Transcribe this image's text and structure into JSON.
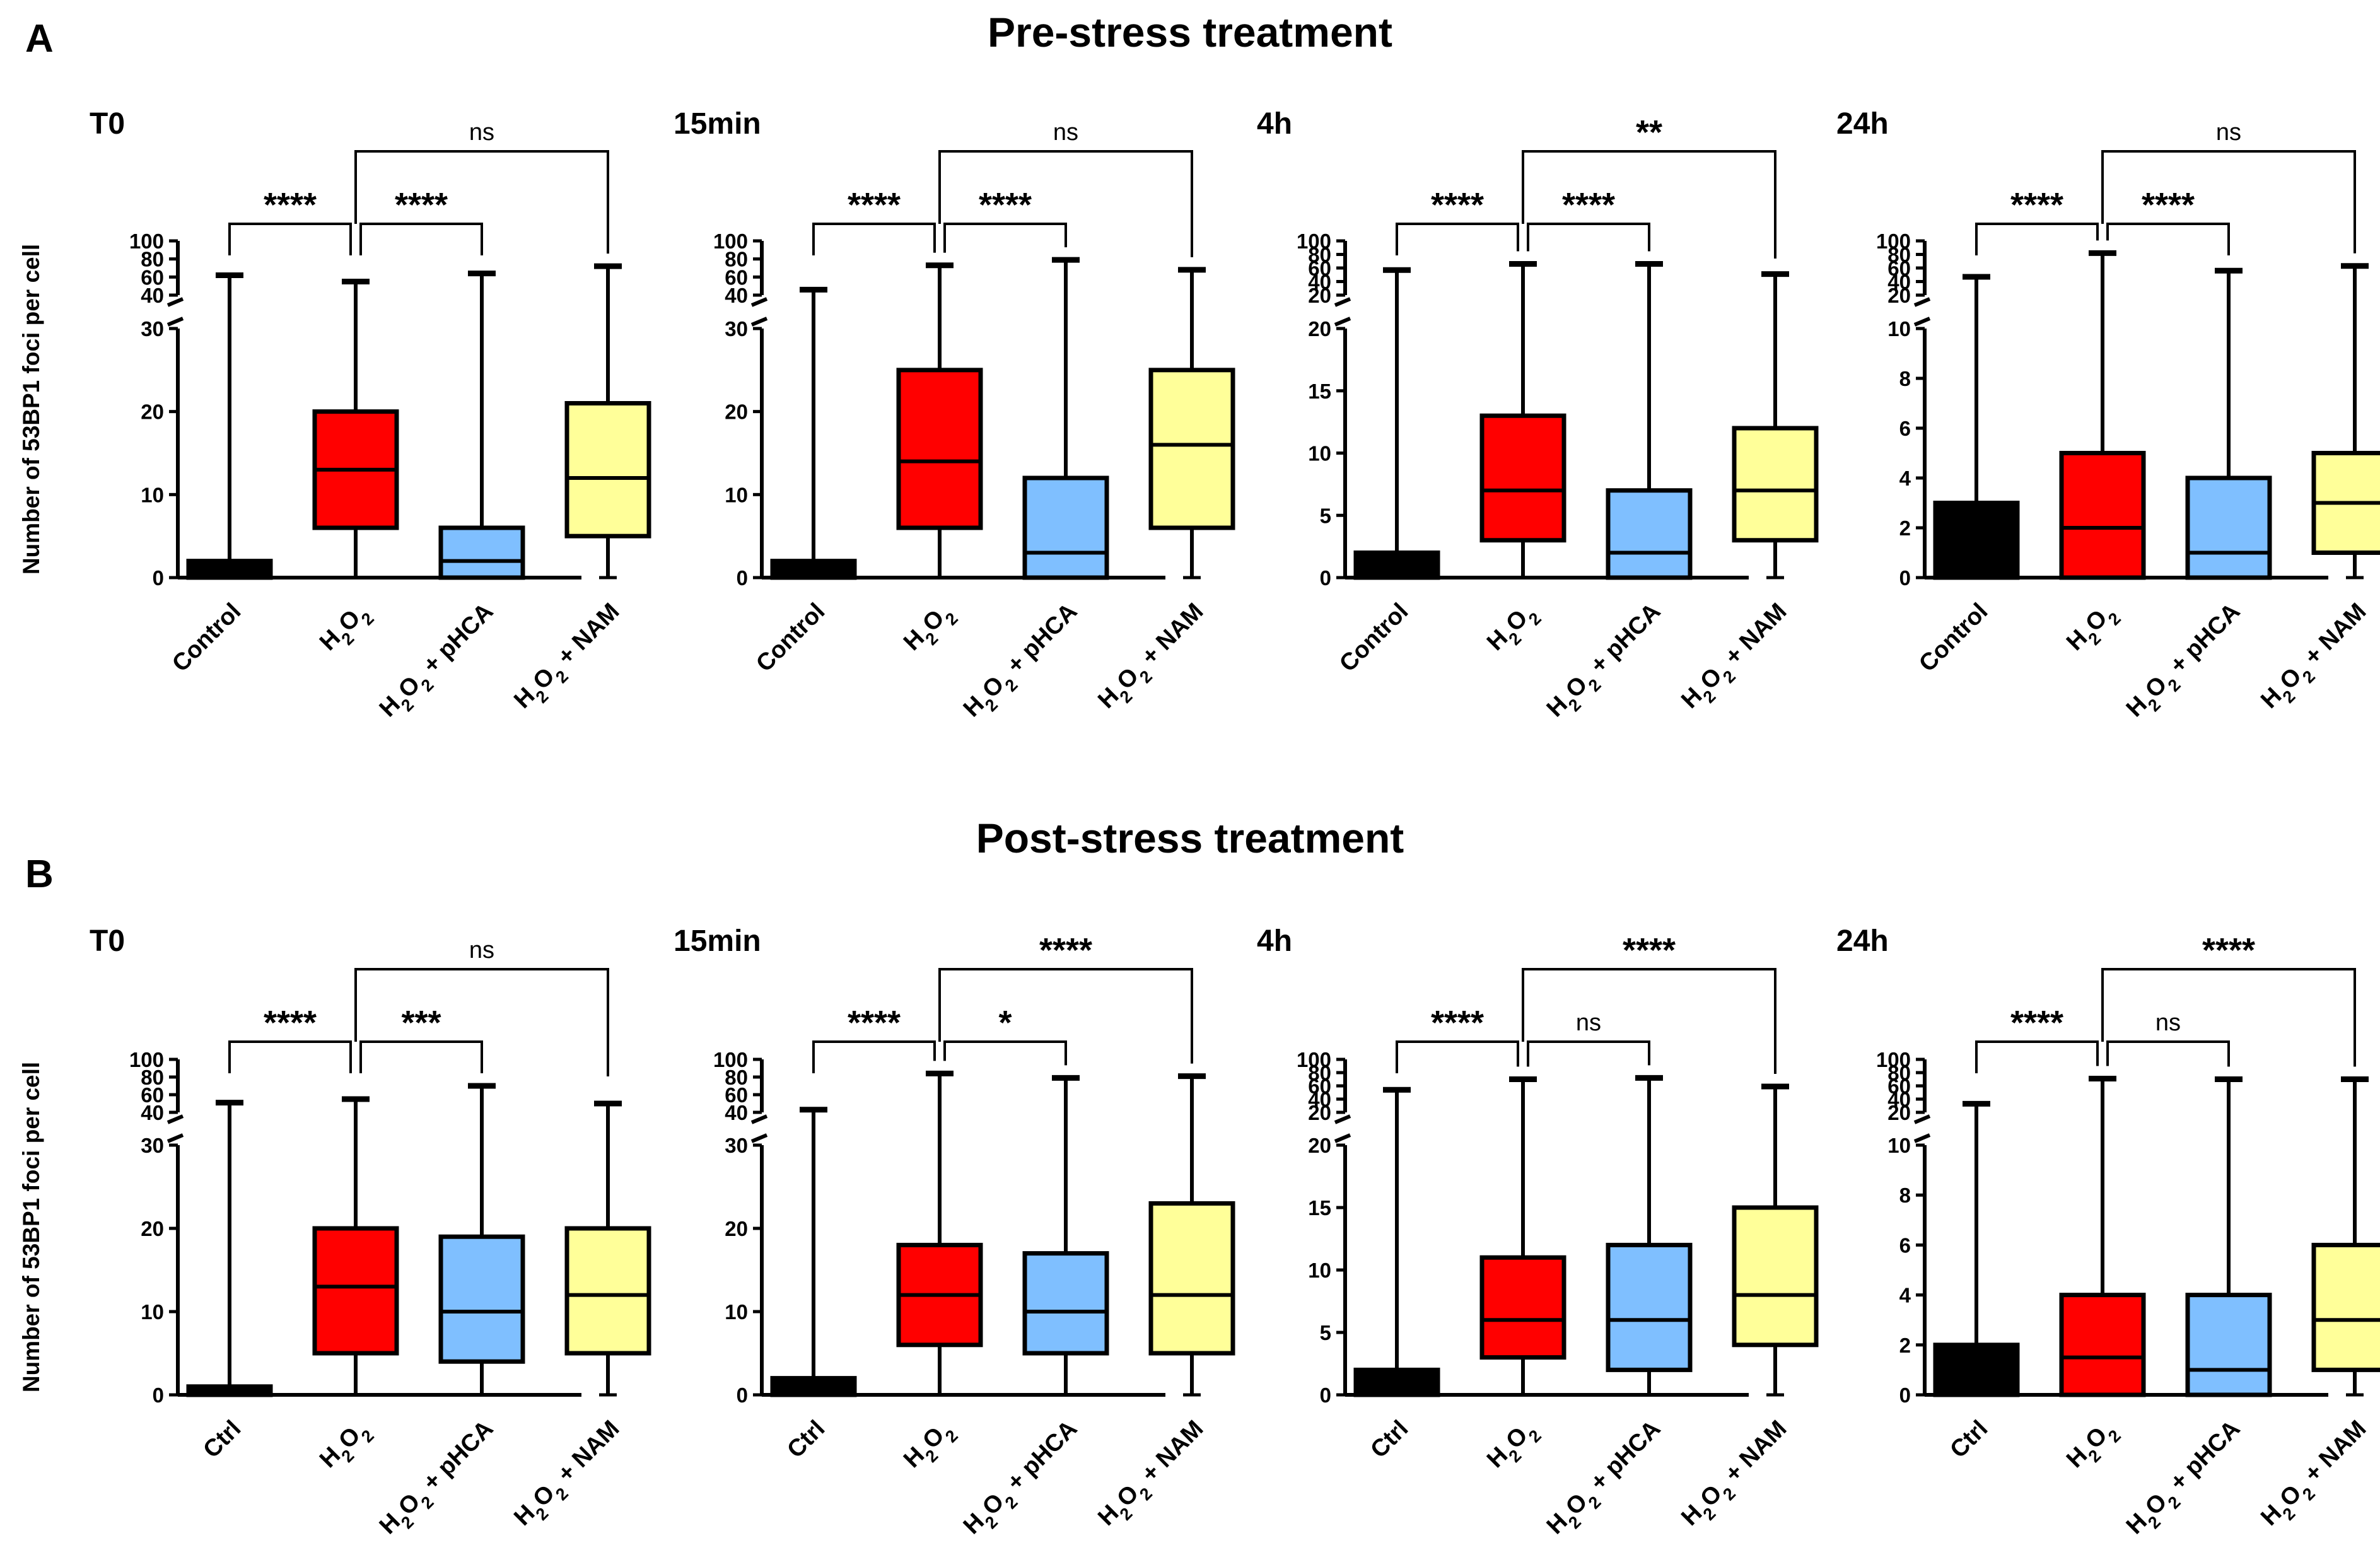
{
  "figure": {
    "title_a": "Pre-stress treatment",
    "title_b": "Post-stress treatment",
    "letter_a": "A",
    "letter_b": "B"
  },
  "colors": {
    "Control": "#000000",
    "H2O2": "#ff0000",
    "pHCA": "#7fbfff",
    "NAM": "#ffff99"
  },
  "chart_data": [
    {
      "type": "box",
      "row": "A",
      "title": "T0",
      "ylabel": "Number of 53BP1 foci per cell",
      "y_segments": {
        "lower": [
          0,
          30
        ],
        "upper": [
          40,
          100
        ]
      },
      "lower_ticks": [
        "0",
        "10",
        "20",
        "30"
      ],
      "upper_ticks": [
        "40",
        "60",
        "80",
        "100"
      ],
      "categories": [
        "Control",
        "H2O2",
        "H2O2 + pHCA",
        "H2O2 + NAM"
      ],
      "color_keys": [
        "Control",
        "H2O2",
        "pHCA",
        "NAM"
      ],
      "boxes": [
        {
          "min": 0,
          "q1": 0,
          "median": 0,
          "q3": 2,
          "max": 62
        },
        {
          "min": 0,
          "q1": 6,
          "median": 13,
          "q3": 20,
          "max": 55
        },
        {
          "min": 0,
          "q1": 0,
          "median": 2,
          "q3": 6,
          "max": 64
        },
        {
          "min": 0,
          "q1": 5,
          "median": 12,
          "q3": 21,
          "max": 72
        }
      ],
      "comparisons": [
        {
          "from": 0,
          "to": 1,
          "label": "****"
        },
        {
          "from": 1,
          "to": 2,
          "label": "****"
        },
        {
          "from": 1,
          "to": 3,
          "label": "ns"
        }
      ]
    },
    {
      "type": "box",
      "row": "A",
      "title": "15min",
      "ylabel": "",
      "y_segments": {
        "lower": [
          0,
          30
        ],
        "upper": [
          40,
          100
        ]
      },
      "lower_ticks": [
        "0",
        "10",
        "20",
        "30"
      ],
      "upper_ticks": [
        "40",
        "60",
        "80",
        "100"
      ],
      "categories": [
        "Control",
        "H2O2",
        "H2O2 + pHCA",
        "H2O2 + NAM"
      ],
      "color_keys": [
        "Control",
        "H2O2",
        "pHCA",
        "NAM"
      ],
      "boxes": [
        {
          "min": 0,
          "q1": 0,
          "median": 0,
          "q3": 2,
          "max": 46
        },
        {
          "min": 0,
          "q1": 6,
          "median": 14,
          "q3": 25,
          "max": 73
        },
        {
          "min": 0,
          "q1": 0,
          "median": 3,
          "q3": 12,
          "max": 79
        },
        {
          "min": 0,
          "q1": 6,
          "median": 16,
          "q3": 25,
          "max": 68
        }
      ],
      "comparisons": [
        {
          "from": 0,
          "to": 1,
          "label": "****"
        },
        {
          "from": 1,
          "to": 2,
          "label": "****"
        },
        {
          "from": 1,
          "to": 3,
          "label": "ns"
        }
      ]
    },
    {
      "type": "box",
      "row": "A",
      "title": "4h",
      "ylabel": "",
      "y_segments": {
        "lower": [
          0,
          20
        ],
        "upper": [
          20,
          100
        ]
      },
      "lower_ticks": [
        "0",
        "5",
        "10",
        "15",
        "20"
      ],
      "upper_ticks": [
        "20",
        "40",
        "60",
        "80",
        "100"
      ],
      "categories": [
        "Control",
        "H2O2",
        "H2O2 + pHCA",
        "H2O2 + NAM"
      ],
      "color_keys": [
        "Control",
        "H2O2",
        "pHCA",
        "NAM"
      ],
      "boxes": [
        {
          "min": 0,
          "q1": 0,
          "median": 0,
          "q3": 2,
          "max": 57
        },
        {
          "min": 0,
          "q1": 3,
          "median": 7,
          "q3": 13,
          "max": 66
        },
        {
          "min": 0,
          "q1": 0,
          "median": 2,
          "q3": 7,
          "max": 66
        },
        {
          "min": 0,
          "q1": 3,
          "median": 7,
          "q3": 12,
          "max": 51
        }
      ],
      "comparisons": [
        {
          "from": 0,
          "to": 1,
          "label": "****"
        },
        {
          "from": 1,
          "to": 2,
          "label": "****"
        },
        {
          "from": 1,
          "to": 3,
          "label": "**"
        }
      ]
    },
    {
      "type": "box",
      "row": "A",
      "title": "24h",
      "ylabel": "",
      "y_segments": {
        "lower": [
          0,
          10
        ],
        "upper": [
          20,
          100
        ]
      },
      "lower_ticks": [
        "0",
        "2",
        "4",
        "6",
        "8",
        "10"
      ],
      "upper_ticks": [
        "20",
        "40",
        "60",
        "80",
        "100"
      ],
      "categories": [
        "Control",
        "H2O2",
        "H2O2 + pHCA",
        "H2O2 + NAM"
      ],
      "color_keys": [
        "Control",
        "H2O2",
        "pHCA",
        "NAM"
      ],
      "boxes": [
        {
          "min": 0,
          "q1": 0,
          "median": 0,
          "q3": 3,
          "max": 47
        },
        {
          "min": 0,
          "q1": 0,
          "median": 2,
          "q3": 5,
          "max": 82
        },
        {
          "min": 0,
          "q1": 0,
          "median": 1,
          "q3": 4,
          "max": 56
        },
        {
          "min": 0,
          "q1": 1,
          "median": 3,
          "q3": 5,
          "max": 63
        }
      ],
      "comparisons": [
        {
          "from": 0,
          "to": 1,
          "label": "****"
        },
        {
          "from": 1,
          "to": 2,
          "label": "****"
        },
        {
          "from": 1,
          "to": 3,
          "label": "ns"
        }
      ]
    },
    {
      "type": "box",
      "row": "B",
      "title": "T0",
      "ylabel": "Number of 53BP1 foci per cell",
      "y_segments": {
        "lower": [
          0,
          30
        ],
        "upper": [
          40,
          100
        ]
      },
      "lower_ticks": [
        "0",
        "10",
        "20",
        "30"
      ],
      "upper_ticks": [
        "40",
        "60",
        "80",
        "100"
      ],
      "categories": [
        "Ctrl",
        "H2O2",
        "H2O2 + pHCA",
        "H2O2 + NAM"
      ],
      "color_keys": [
        "Control",
        "H2O2",
        "pHCA",
        "NAM"
      ],
      "boxes": [
        {
          "min": 0,
          "q1": 0,
          "median": 0,
          "q3": 1,
          "max": 51
        },
        {
          "min": 0,
          "q1": 5,
          "median": 13,
          "q3": 20,
          "max": 55
        },
        {
          "min": 0,
          "q1": 4,
          "median": 10,
          "q3": 19,
          "max": 70
        },
        {
          "min": 0,
          "q1": 5,
          "median": 12,
          "q3": 20,
          "max": 50
        }
      ],
      "comparisons": [
        {
          "from": 0,
          "to": 1,
          "label": "****"
        },
        {
          "from": 1,
          "to": 2,
          "label": "***"
        },
        {
          "from": 1,
          "to": 3,
          "label": "ns"
        }
      ]
    },
    {
      "type": "box",
      "row": "B",
      "title": "15min",
      "ylabel": "",
      "y_segments": {
        "lower": [
          0,
          30
        ],
        "upper": [
          40,
          100
        ]
      },
      "lower_ticks": [
        "0",
        "10",
        "20",
        "30"
      ],
      "upper_ticks": [
        "40",
        "60",
        "80",
        "100"
      ],
      "categories": [
        "Ctrl",
        "H2O2",
        "H2O2 + pHCA",
        "H2O2 + NAM"
      ],
      "color_keys": [
        "Control",
        "H2O2",
        "pHCA",
        "NAM"
      ],
      "boxes": [
        {
          "min": 0,
          "q1": 0,
          "median": 0,
          "q3": 2,
          "max": 43
        },
        {
          "min": 0,
          "q1": 6,
          "median": 12,
          "q3": 18,
          "max": 84
        },
        {
          "min": 0,
          "q1": 5,
          "median": 10,
          "q3": 17,
          "max": 79
        },
        {
          "min": 0,
          "q1": 5,
          "median": 12,
          "q3": 23,
          "max": 81
        }
      ],
      "comparisons": [
        {
          "from": 0,
          "to": 1,
          "label": "****"
        },
        {
          "from": 1,
          "to": 2,
          "label": "*"
        },
        {
          "from": 1,
          "to": 3,
          "label": "****"
        }
      ]
    },
    {
      "type": "box",
      "row": "B",
      "title": "4h",
      "ylabel": "",
      "y_segments": {
        "lower": [
          0,
          20
        ],
        "upper": [
          20,
          100
        ]
      },
      "lower_ticks": [
        "0",
        "5",
        "10",
        "15",
        "20"
      ],
      "upper_ticks": [
        "20",
        "40",
        "60",
        "80",
        "100"
      ],
      "categories": [
        "Ctrl",
        "H2O2",
        "H2O2 + pHCA",
        "H2O2 + NAM"
      ],
      "color_keys": [
        "Control",
        "H2O2",
        "pHCA",
        "NAM"
      ],
      "boxes": [
        {
          "min": 0,
          "q1": 0,
          "median": 0,
          "q3": 2,
          "max": 54
        },
        {
          "min": 0,
          "q1": 3,
          "median": 6,
          "q3": 11,
          "max": 70
        },
        {
          "min": 0,
          "q1": 2,
          "median": 6,
          "q3": 12,
          "max": 72
        },
        {
          "min": 0,
          "q1": 4,
          "median": 8,
          "q3": 15,
          "max": 59
        }
      ],
      "comparisons": [
        {
          "from": 0,
          "to": 1,
          "label": "****"
        },
        {
          "from": 1,
          "to": 2,
          "label": "ns"
        },
        {
          "from": 1,
          "to": 3,
          "label": "****"
        }
      ]
    },
    {
      "type": "box",
      "row": "B",
      "title": "24h",
      "ylabel": "",
      "y_segments": {
        "lower": [
          0,
          10
        ],
        "upper": [
          20,
          100
        ]
      },
      "lower_ticks": [
        "0",
        "2",
        "4",
        "6",
        "8",
        "10"
      ],
      "upper_ticks": [
        "20",
        "40",
        "60",
        "80",
        "100"
      ],
      "categories": [
        "Ctrl",
        "H2O2",
        "H2O2 + pHCA",
        "H2O2 + NAM"
      ],
      "color_keys": [
        "Control",
        "H2O2",
        "pHCA",
        "NAM"
      ],
      "boxes": [
        {
          "min": 0,
          "q1": 0,
          "median": 0,
          "q3": 2,
          "max": 33
        },
        {
          "min": 0,
          "q1": 0,
          "median": 1.5,
          "q3": 4,
          "max": 71
        },
        {
          "min": 0,
          "q1": 0,
          "median": 1,
          "q3": 4,
          "max": 70
        },
        {
          "min": 0,
          "q1": 1,
          "median": 3,
          "q3": 6,
          "max": 70
        }
      ],
      "comparisons": [
        {
          "from": 0,
          "to": 1,
          "label": "****"
        },
        {
          "from": 1,
          "to": 2,
          "label": "ns"
        },
        {
          "from": 1,
          "to": 3,
          "label": "****"
        }
      ]
    }
  ]
}
